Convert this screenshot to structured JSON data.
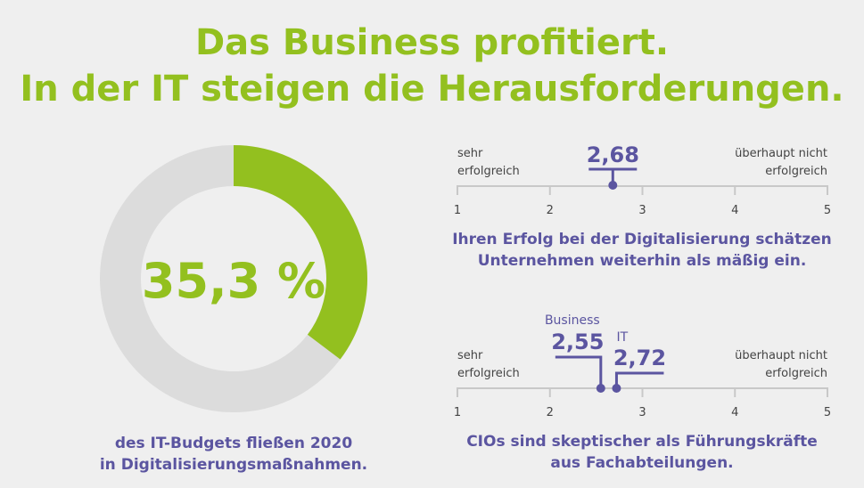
{
  "title": {
    "line1": "Das Business profitiert.",
    "line2": "In der IT steigen die Herausforderungen."
  },
  "colors": {
    "accent_green": "#93c01f",
    "accent_purple": "#5b55a0",
    "ring_grey": "#dcdcdc",
    "background": "#efefef"
  },
  "chart_data": [
    {
      "type": "pie",
      "variant": "donut",
      "center_label": "35,3 %",
      "values": [
        35.3,
        64.7
      ],
      "caption": [
        "des IT-Budgets fließen 2020",
        "in Digitalisierungsmaßnahmen."
      ]
    },
    {
      "type": "scatter",
      "scale": {
        "min": 1,
        "max": 5,
        "ticks": [
          "1",
          "2",
          "3",
          "4",
          "5"
        ],
        "left_label": [
          "sehr",
          "erfolgreich"
        ],
        "right_label": [
          "überhaupt nicht",
          "erfolgreich"
        ]
      },
      "points": [
        {
          "value": 2.68,
          "label": "2,68"
        }
      ],
      "caption": [
        "Ihren Erfolg bei der Digitalisierung schätzen",
        "Unternehmen weiterhin als mäßig ein."
      ]
    },
    {
      "type": "scatter",
      "scale": {
        "min": 1,
        "max": 5,
        "ticks": [
          "1",
          "2",
          "3",
          "4",
          "5"
        ],
        "left_label": [
          "sehr",
          "erfolgreich"
        ],
        "right_label": [
          "überhaupt nicht",
          "erfolgreich"
        ]
      },
      "points": [
        {
          "name": "Business",
          "value": 2.55,
          "label": "2,55"
        },
        {
          "name": "IT",
          "value": 2.72,
          "label": "2,72"
        }
      ],
      "caption": [
        "CIOs sind skeptischer als Führungskräfte",
        "aus Fachabteilungen."
      ]
    }
  ]
}
